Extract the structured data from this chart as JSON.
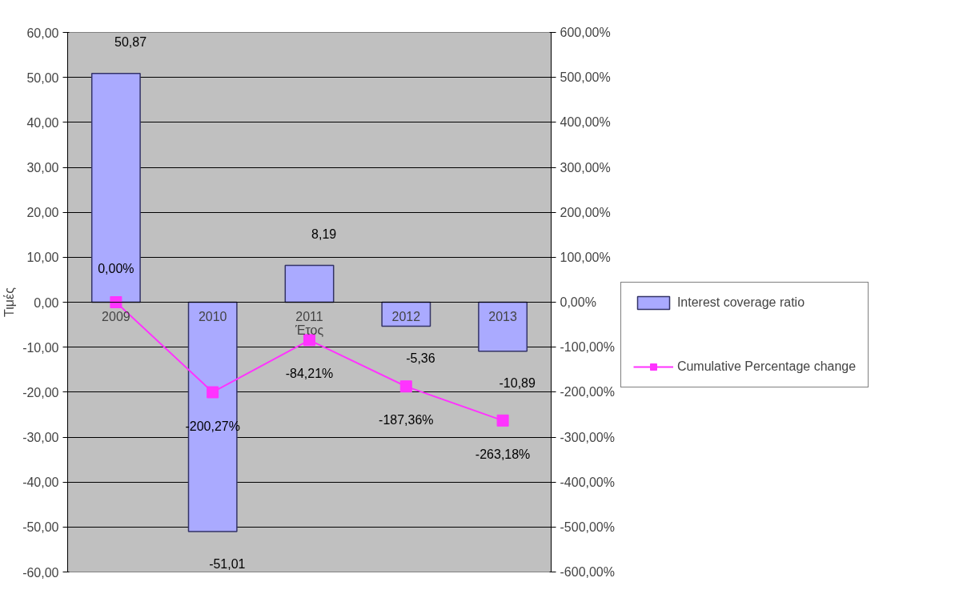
{
  "chart_data": {
    "type": "bar",
    "xlabel": "Έτος",
    "ylabel": "Τιμές",
    "categories": [
      "2009",
      "2010",
      "2011",
      "2012",
      "2013"
    ],
    "series": [
      {
        "name": "Interest coverage ratio",
        "type": "bar",
        "color": "#aaaaff",
        "values": [
          50.87,
          -51.01,
          8.19,
          -5.36,
          -10.89
        ],
        "value_labels": [
          "50,87",
          "-51,01",
          "8,19",
          "-5,36",
          "-10,89"
        ]
      },
      {
        "name": "Cumulative Percentage change",
        "type": "line",
        "axis": "y2",
        "color": "#ff33ff",
        "marker": "square",
        "values": [
          0,
          -200.27,
          -84.21,
          -187.36,
          -263.18
        ],
        "value_labels": [
          "0,00%",
          "-200,27%",
          "-84,21%",
          "-187,36%",
          "-263,18%"
        ]
      }
    ],
    "ylim": [
      -60,
      60
    ],
    "yticks": [
      {
        "value": -60,
        "label": "-60,00"
      },
      {
        "value": -50,
        "label": "-50,00"
      },
      {
        "value": -40,
        "label": "-40,00"
      },
      {
        "value": -30,
        "label": "-30,00"
      },
      {
        "value": -20,
        "label": "-20,00"
      },
      {
        "value": -10,
        "label": "-10,00"
      },
      {
        "value": 0,
        "label": "0,00"
      },
      {
        "value": 10,
        "label": "10,00"
      },
      {
        "value": 20,
        "label": "20,00"
      },
      {
        "value": 30,
        "label": "30,00"
      },
      {
        "value": 40,
        "label": "40,00"
      },
      {
        "value": 50,
        "label": "50,00"
      },
      {
        "value": 60,
        "label": "60,00"
      }
    ],
    "y2lim": [
      -600,
      600
    ],
    "y2ticks": [
      {
        "value": -600,
        "label": "-600,00%"
      },
      {
        "value": -500,
        "label": "-500,00%"
      },
      {
        "value": -400,
        "label": "-400,00%"
      },
      {
        "value": -300,
        "label": "-300,00%"
      },
      {
        "value": -200,
        "label": "-200,00%"
      },
      {
        "value": -100,
        "label": "-100,00%"
      },
      {
        "value": 0,
        "label": "0,00%"
      },
      {
        "value": 100,
        "label": "100,00%"
      },
      {
        "value": 200,
        "label": "200,00%"
      },
      {
        "value": 300,
        "label": "300,00%"
      },
      {
        "value": 400,
        "label": "400,00%"
      },
      {
        "value": 500,
        "label": "500,00%"
      },
      {
        "value": 600,
        "label": "600,00%"
      }
    ],
    "grid": "y",
    "legend": "right"
  }
}
